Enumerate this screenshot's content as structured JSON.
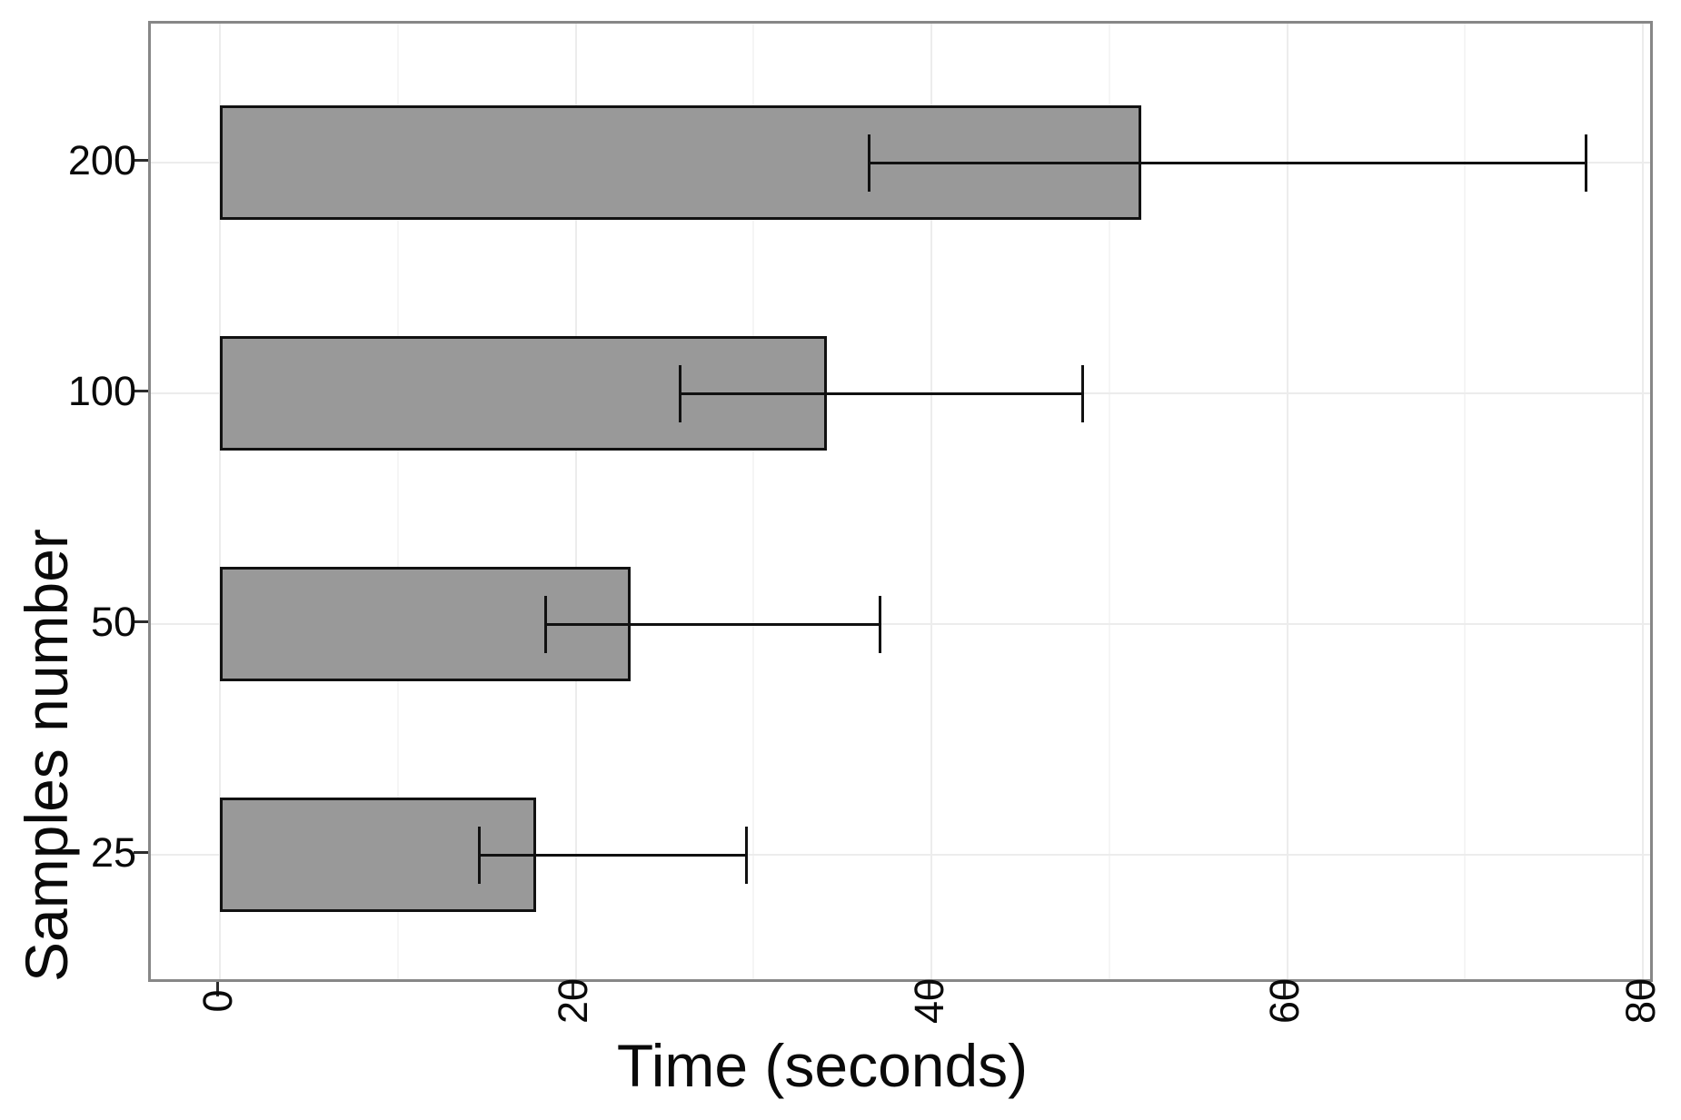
{
  "chart_data": {
    "type": "bar",
    "orientation": "horizontal",
    "title": "",
    "xlabel": "Time (seconds)",
    "ylabel": "Samples number",
    "categories": [
      "25",
      "50",
      "100",
      "200"
    ],
    "values": [
      17.8,
      23.1,
      34.1,
      51.8
    ],
    "error_low": [
      14.6,
      18.3,
      25.9,
      36.5
    ],
    "error_high": [
      29.6,
      37.1,
      48.5,
      76.8
    ],
    "x_tick_labels": [
      "0",
      "20",
      "40",
      "60",
      "80"
    ],
    "x_tick_values": [
      0,
      20,
      40,
      60,
      80
    ],
    "x_minor_values": [
      10,
      30,
      50,
      70
    ],
    "xlim": [
      0,
      80
    ],
    "grid": true,
    "legend": "none",
    "colors": {
      "bar_fill": "#999999",
      "bar_border": "#111111",
      "errorbar": "#111111",
      "panel_border": "#878787",
      "grid_major": "#ececec",
      "grid_minor": "#f5f5f5",
      "tick_mark": "#2b2b2b",
      "text": "#0a0a0a",
      "background": "#ffffff"
    }
  }
}
